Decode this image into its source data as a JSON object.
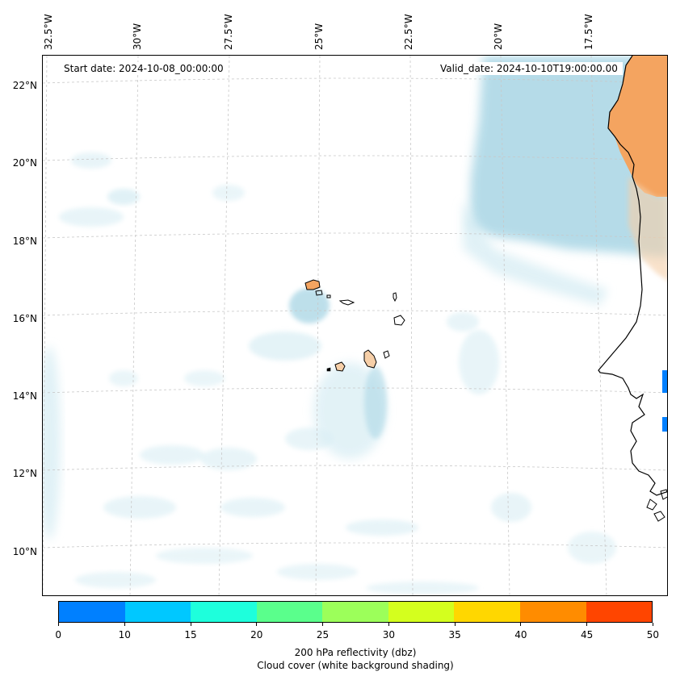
{
  "map": {
    "start_date": "Start date: 2024-10-08_00:00:00",
    "valid_date": "Valid_date: 2024-10-10T19:00:00.00",
    "lon_labels": [
      "32.5°W",
      "30°W",
      "27.5°W",
      "25°W",
      "22.5°W",
      "20°W",
      "17.5°W"
    ],
    "lat_labels": [
      "22°N",
      "20°N",
      "18°N",
      "16°N",
      "14°N",
      "12°N",
      "10°N"
    ],
    "extent": {
      "lon_min": -32.6,
      "lon_max": -15.3,
      "lat_min": 8.9,
      "lat_max": 22.8
    },
    "colors": {
      "cloud_light": "#d9eef4",
      "cloud_mid": "#add8e6",
      "land_dry": "#f4a460",
      "land_pale": "#f6cfa8",
      "coastline": "#000000",
      "grid": "#c8c8c8"
    }
  },
  "colorbar": {
    "ticks": [
      "0",
      "10",
      "15",
      "20",
      "25",
      "30",
      "35",
      "40",
      "45",
      "50"
    ],
    "colors": [
      "#0080ff",
      "#00c8ff",
      "#1effdc",
      "#5aff8c",
      "#9cff5a",
      "#d4ff1e",
      "#ffd700",
      "#ff8c00",
      "#ff4500"
    ],
    "caption_line1": "200 hPa reflectivity (dbz)",
    "caption_line2": "Cloud cover (white background shading)"
  }
}
